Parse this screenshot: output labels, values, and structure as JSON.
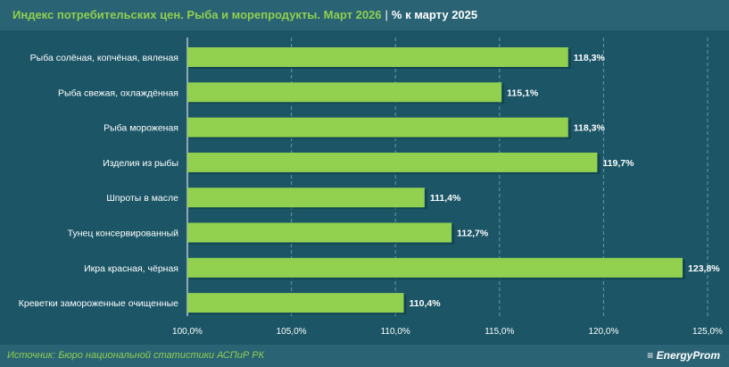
{
  "header": {
    "title": "Индекс потребительских цен. Рыба и морепродукты. Март 2026",
    "separator": "|",
    "subtitle": "% к марту 2025"
  },
  "footer": {
    "source": "Источник: Бюро национальной статистики АСПиР РК",
    "logo": "EnergyProm"
  },
  "chart_data": {
    "type": "bar",
    "orientation": "horizontal",
    "title": "Индекс потребительских цен. Рыба и морепродукты. Март 2026",
    "categories": [
      "Рыба солёная, копчёная, вяленая",
      "Рыба свежая, охлаждённая",
      "Рыба мороженая",
      "Изделия из рыбы",
      "Шпроты в масле",
      "Тунец консервированный",
      "Икра красная, чёрная",
      "Креветки замороженные очищенные"
    ],
    "values": [
      118.3,
      115.1,
      118.3,
      119.7,
      111.4,
      112.7,
      123.8,
      110.4
    ],
    "labels": [
      "118,3%",
      "115,1%",
      "118,3%",
      "119,7%",
      "111,4%",
      "112,7%",
      "123,8%",
      "110,4%"
    ],
    "xlim": [
      100,
      125
    ],
    "ticks": [
      100,
      105,
      110,
      115,
      120,
      125
    ],
    "tick_labels": [
      "100,0%",
      "105,0%",
      "110,0%",
      "115,0%",
      "120,0%",
      "125,0%"
    ],
    "grid": true,
    "bar_color": "#92d050"
  }
}
